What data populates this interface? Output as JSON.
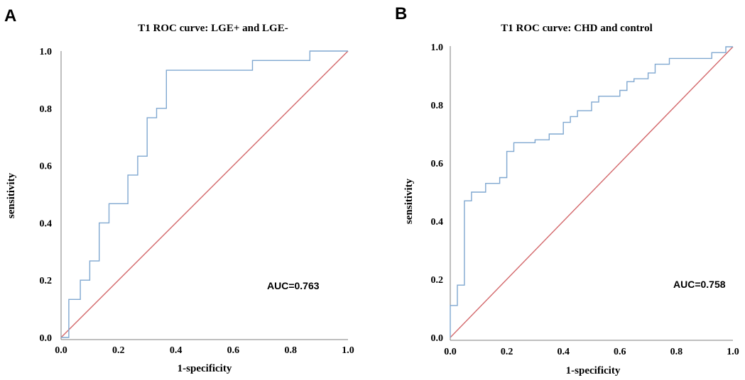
{
  "colors": {
    "roc": "#7fa7d0",
    "reference": "#d3686b",
    "axis": "#7f7f7f"
  },
  "chart_data": [
    {
      "panel": "A",
      "type": "line",
      "title": "T1 ROC curve: LGE+ and LGE-",
      "xlabel": "1-specificity",
      "ylabel": "sensitivity",
      "xlim": [
        0,
        1
      ],
      "ylim": [
        0,
        1
      ],
      "xticks": [
        "0.0",
        "0.2",
        "0.4",
        "0.6",
        "0.8",
        "1.0"
      ],
      "yticks": [
        "0.0",
        "0.2",
        "0.4",
        "0.6",
        "0.8",
        "1.0"
      ],
      "annotation": "AUC=0.763",
      "series": [
        {
          "name": "ROC",
          "points": [
            [
              0,
              0
            ],
            [
              0.027,
              0
            ],
            [
              0.027,
              0.133
            ],
            [
              0.067,
              0.133
            ],
            [
              0.067,
              0.2
            ],
            [
              0.1,
              0.2
            ],
            [
              0.1,
              0.267
            ],
            [
              0.133,
              0.267
            ],
            [
              0.133,
              0.4
            ],
            [
              0.167,
              0.4
            ],
            [
              0.167,
              0.467
            ],
            [
              0.233,
              0.467
            ],
            [
              0.233,
              0.567
            ],
            [
              0.267,
              0.567
            ],
            [
              0.267,
              0.633
            ],
            [
              0.3,
              0.633
            ],
            [
              0.3,
              0.767
            ],
            [
              0.333,
              0.767
            ],
            [
              0.333,
              0.8
            ],
            [
              0.367,
              0.8
            ],
            [
              0.367,
              0.933
            ],
            [
              0.667,
              0.933
            ],
            [
              0.667,
              0.967
            ],
            [
              0.867,
              0.967
            ],
            [
              0.867,
              1.0
            ],
            [
              1.0,
              1.0
            ]
          ]
        },
        {
          "name": "Reference",
          "points": [
            [
              0,
              0
            ],
            [
              1,
              1
            ]
          ]
        }
      ]
    },
    {
      "panel": "B",
      "type": "line",
      "title": "T1 ROC curve: CHD and  control",
      "xlabel": "1-specificity",
      "ylabel": "sensitivity",
      "xlim": [
        0,
        1
      ],
      "ylim": [
        0,
        1
      ],
      "xticks": [
        "0.0",
        "0.2",
        "0.4",
        "0.6",
        "0.8",
        "1.0"
      ],
      "yticks": [
        "0.0",
        "0.2",
        "0.4",
        "0.6",
        "0.8",
        "1.0"
      ],
      "annotation": "AUC=0.758",
      "series": [
        {
          "name": "ROC",
          "points": [
            [
              0,
              0
            ],
            [
              0,
              0.11
            ],
            [
              0.025,
              0.11
            ],
            [
              0.025,
              0.18
            ],
            [
              0.05,
              0.18
            ],
            [
              0.05,
              0.47
            ],
            [
              0.075,
              0.47
            ],
            [
              0.075,
              0.5
            ],
            [
              0.125,
              0.5
            ],
            [
              0.125,
              0.53
            ],
            [
              0.175,
              0.53
            ],
            [
              0.175,
              0.55
            ],
            [
              0.2,
              0.55
            ],
            [
              0.2,
              0.64
            ],
            [
              0.225,
              0.64
            ],
            [
              0.225,
              0.67
            ],
            [
              0.3,
              0.67
            ],
            [
              0.3,
              0.68
            ],
            [
              0.35,
              0.68
            ],
            [
              0.35,
              0.7
            ],
            [
              0.4,
              0.7
            ],
            [
              0.4,
              0.74
            ],
            [
              0.425,
              0.74
            ],
            [
              0.425,
              0.76
            ],
            [
              0.45,
              0.76
            ],
            [
              0.45,
              0.78
            ],
            [
              0.5,
              0.78
            ],
            [
              0.5,
              0.81
            ],
            [
              0.525,
              0.81
            ],
            [
              0.525,
              0.83
            ],
            [
              0.6,
              0.83
            ],
            [
              0.6,
              0.85
            ],
            [
              0.625,
              0.85
            ],
            [
              0.625,
              0.88
            ],
            [
              0.65,
              0.88
            ],
            [
              0.65,
              0.89
            ],
            [
              0.7,
              0.89
            ],
            [
              0.7,
              0.91
            ],
            [
              0.725,
              0.91
            ],
            [
              0.725,
              0.94
            ],
            [
              0.775,
              0.94
            ],
            [
              0.775,
              0.96
            ],
            [
              0.925,
              0.96
            ],
            [
              0.925,
              0.98
            ],
            [
              0.975,
              0.98
            ],
            [
              0.975,
              1.0
            ],
            [
              1.0,
              1.0
            ]
          ]
        },
        {
          "name": "Reference",
          "points": [
            [
              0,
              0
            ],
            [
              1,
              1
            ]
          ]
        }
      ]
    }
  ]
}
